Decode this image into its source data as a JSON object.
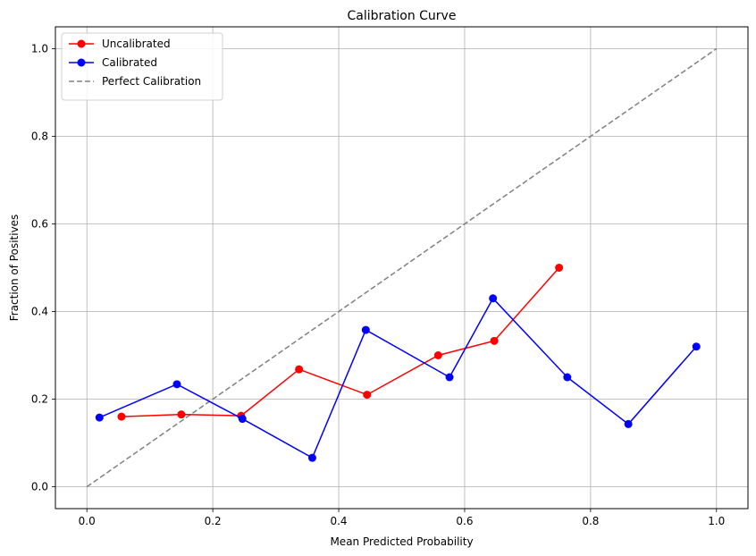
{
  "chart_data": {
    "type": "line",
    "title": "Calibration Curve",
    "xlabel": "Mean Predicted Probability",
    "ylabel": "Fraction of Positives",
    "xlim": [
      -0.05,
      1.05
    ],
    "ylim": [
      -0.05,
      1.05
    ],
    "xticks": [
      0.0,
      0.2,
      0.4,
      0.6,
      0.8,
      1.0
    ],
    "yticks": [
      0.0,
      0.2,
      0.4,
      0.6,
      0.8,
      1.0
    ],
    "xtick_labels": [
      "0.0",
      "0.2",
      "0.4",
      "0.6",
      "0.8",
      "1.0"
    ],
    "ytick_labels": [
      "0.0",
      "0.2",
      "0.4",
      "0.6",
      "0.8",
      "1.0"
    ],
    "grid": true,
    "legend_position": "top-left",
    "series": [
      {
        "name": "Uncalibrated",
        "color": "#ff0000",
        "style": "solid",
        "marker": "circle",
        "x": [
          0.055,
          0.15,
          0.245,
          0.337,
          0.445,
          0.558,
          0.647,
          0.75
        ],
        "y": [
          0.16,
          0.165,
          0.162,
          0.268,
          0.21,
          0.3,
          0.333,
          0.5
        ]
      },
      {
        "name": "Calibrated",
        "color": "#0000ff",
        "style": "solid",
        "marker": "circle",
        "x": [
          0.02,
          0.143,
          0.247,
          0.358,
          0.443,
          0.576,
          0.645,
          0.763,
          0.86,
          0.968
        ],
        "y": [
          0.158,
          0.234,
          0.155,
          0.066,
          0.358,
          0.25,
          0.43,
          0.25,
          0.143,
          0.32
        ]
      },
      {
        "name": "Perfect Calibration",
        "color": "#808080",
        "style": "dashed",
        "marker": "none",
        "x": [
          0.0,
          1.0
        ],
        "y": [
          0.0,
          1.0
        ]
      }
    ]
  }
}
